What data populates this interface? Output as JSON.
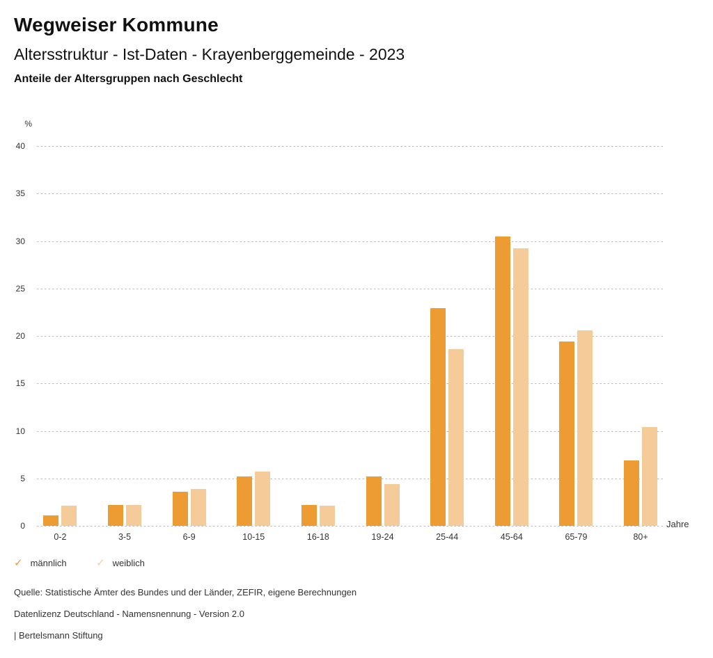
{
  "header": {
    "title": "Wegweiser Kommune",
    "subtitle": "Altersstruktur - Ist-Daten - Krayenberggemeinde - 2023",
    "chart_heading": "Anteile der Altersgruppen nach Geschlecht"
  },
  "chart_data": {
    "type": "bar",
    "title": "Anteile der Altersgruppen nach Geschlecht",
    "categories": [
      "0-2",
      "3-5",
      "6-9",
      "10-15",
      "16-18",
      "19-24",
      "25-44",
      "45-64",
      "65-79",
      "80+"
    ],
    "series": [
      {
        "name": "männlich",
        "color": "#ED9B33",
        "values": [
          1.1,
          2.2,
          3.6,
          5.2,
          2.2,
          5.2,
          22.9,
          30.5,
          19.4,
          6.9
        ]
      },
      {
        "name": "weiblich",
        "color": "#F5CC99",
        "values": [
          2.1,
          2.2,
          3.9,
          5.7,
          2.1,
          4.4,
          18.6,
          29.2,
          20.6,
          10.4
        ]
      }
    ],
    "xlabel": "Jahre",
    "ylabel": "%",
    "ylim": [
      0,
      40
    ],
    "ytick_step": 5,
    "yticks": [
      0,
      5,
      10,
      15,
      20,
      25,
      30,
      35,
      40
    ],
    "grid": "horizontal-dotted",
    "legend_position": "bottom-left",
    "legend_marker": "check-icon"
  },
  "footer": {
    "source": "Quelle: Statistische Ämter des Bundes und der Länder, ZEFIR, eigene Berechnungen",
    "license": "Datenlizenz Deutschland - Namensnennung - Version 2.0",
    "attribution": "| Bertelsmann Stiftung"
  }
}
